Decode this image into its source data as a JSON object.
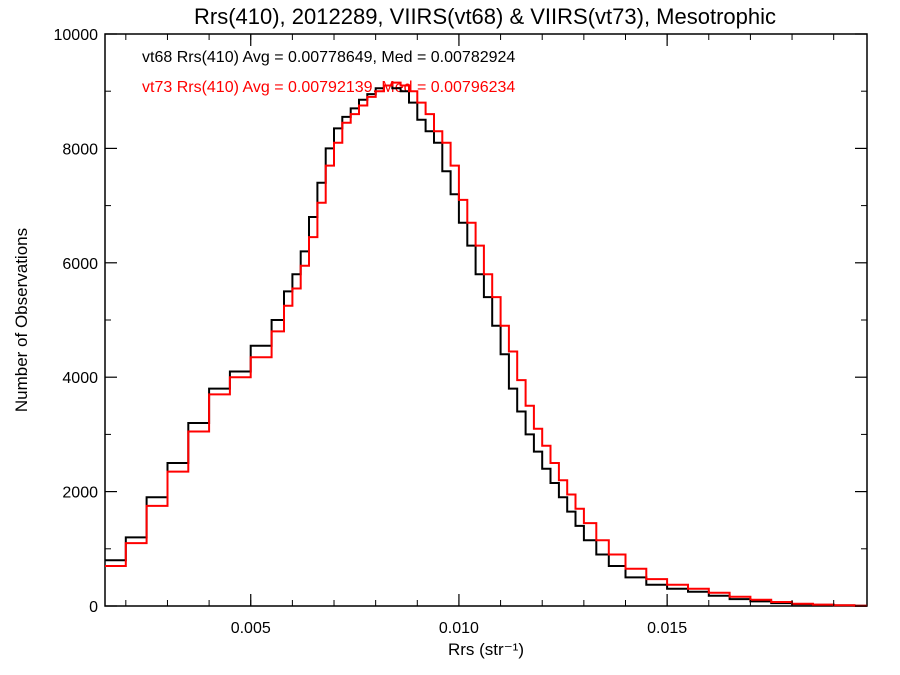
{
  "chart_data": {
    "type": "line",
    "title": "Rrs(410), 2012289, VIIRS(vt68) & VIIRS(vt73), Mesotrophic",
    "xlabel": "Rrs (str⁻¹)",
    "ylabel": "Number of Observations",
    "xlim": [
      0.0015,
      0.0198
    ],
    "ylim": [
      0,
      10000
    ],
    "xticks": [
      0.005,
      0.01,
      0.015
    ],
    "xtick_labels": [
      "0.005",
      "0.010",
      "0.015"
    ],
    "yticks": [
      0,
      2000,
      4000,
      6000,
      8000,
      10000
    ],
    "ytick_labels": [
      "0",
      "2000",
      "4000",
      "6000",
      "8000",
      "10000"
    ],
    "grid": false,
    "step": true,
    "annotations": [
      {
        "text": "vt68 Rrs(410) Avg = 0.00778649, Med = 0.00782924",
        "color": "#000000"
      },
      {
        "text": "vt73 Rrs(410) Avg = 0.00792139, Med = 0.00796234",
        "color": "#ff0000"
      }
    ],
    "series": [
      {
        "color": "#000000",
        "x": [
          0.0015,
          0.002,
          0.0025,
          0.003,
          0.0035,
          0.004,
          0.0045,
          0.005,
          0.0055,
          0.0058,
          0.006,
          0.0062,
          0.0064,
          0.0066,
          0.0068,
          0.007,
          0.0072,
          0.0074,
          0.0076,
          0.0078,
          0.008,
          0.0082,
          0.0084,
          0.0086,
          0.0088,
          0.009,
          0.0092,
          0.0094,
          0.0096,
          0.0098,
          0.01,
          0.0102,
          0.0104,
          0.0106,
          0.0108,
          0.011,
          0.0112,
          0.0114,
          0.0116,
          0.0118,
          0.012,
          0.0122,
          0.0124,
          0.0126,
          0.0128,
          0.013,
          0.0133,
          0.0136,
          0.014,
          0.0145,
          0.015,
          0.0155,
          0.016,
          0.0165,
          0.017,
          0.0175,
          0.018,
          0.0185,
          0.019,
          0.0195
        ],
        "y": [
          800,
          1200,
          1900,
          2500,
          3200,
          3800,
          4100,
          4550,
          5000,
          5500,
          5800,
          6200,
          6800,
          7400,
          8000,
          8350,
          8550,
          8700,
          8850,
          8950,
          9050,
          9100,
          9050,
          9000,
          8800,
          8500,
          8300,
          8100,
          7600,
          7200,
          6700,
          6300,
          5800,
          5400,
          4900,
          4400,
          3800,
          3400,
          3000,
          2700,
          2400,
          2150,
          1900,
          1650,
          1400,
          1150,
          900,
          700,
          500,
          370,
          300,
          250,
          180,
          120,
          80,
          50,
          30,
          20,
          10,
          5
        ]
      },
      {
        "color": "#ff0000",
        "x": [
          0.0015,
          0.002,
          0.0025,
          0.003,
          0.0035,
          0.004,
          0.0045,
          0.005,
          0.0055,
          0.0058,
          0.006,
          0.0062,
          0.0064,
          0.0066,
          0.0068,
          0.007,
          0.0072,
          0.0074,
          0.0076,
          0.0078,
          0.008,
          0.0082,
          0.0084,
          0.0086,
          0.0088,
          0.009,
          0.0092,
          0.0094,
          0.0096,
          0.0098,
          0.01,
          0.0102,
          0.0104,
          0.0106,
          0.0108,
          0.011,
          0.0112,
          0.0114,
          0.0116,
          0.0118,
          0.012,
          0.0122,
          0.0124,
          0.0126,
          0.0128,
          0.013,
          0.0133,
          0.0136,
          0.014,
          0.0145,
          0.015,
          0.0155,
          0.016,
          0.0165,
          0.017,
          0.0175,
          0.018,
          0.0185,
          0.019,
          0.0195
        ],
        "y": [
          700,
          1100,
          1750,
          2350,
          3050,
          3700,
          4000,
          4350,
          4800,
          5250,
          5550,
          5950,
          6450,
          7050,
          7700,
          8100,
          8450,
          8600,
          8750,
          8900,
          9000,
          9100,
          9150,
          9100,
          9000,
          8800,
          8600,
          8300,
          8100,
          7700,
          7100,
          6700,
          6300,
          5800,
          5400,
          4900,
          4450,
          3950,
          3500,
          3100,
          2800,
          2500,
          2200,
          1950,
          1700,
          1450,
          1150,
          900,
          650,
          470,
          370,
          300,
          230,
          160,
          110,
          70,
          40,
          25,
          12,
          6
        ]
      }
    ]
  }
}
